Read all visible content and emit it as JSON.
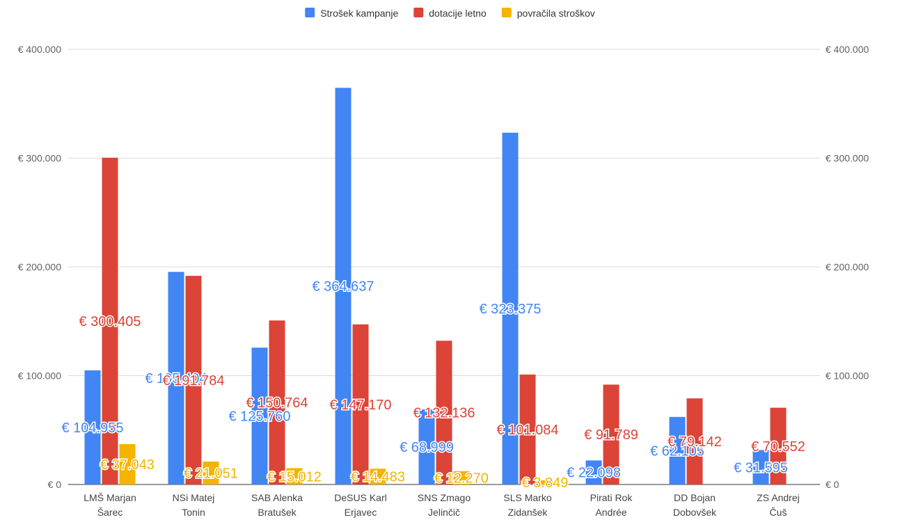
{
  "chart_data": {
    "type": "bar",
    "categories": [
      [
        "LMŠ Marjan",
        "Šarec"
      ],
      [
        "NSi Matej",
        "Tonin"
      ],
      [
        "SAB Alenka",
        "Bratušek"
      ],
      [
        "DeSUS Karl",
        "Erjavec"
      ],
      [
        "SNS Zmago",
        "Jelinčič"
      ],
      [
        "SLS Marko",
        "Zidanšek"
      ],
      [
        "Pirati Rok",
        "Andrée"
      ],
      [
        "DD Bojan",
        "Dobovšek"
      ],
      [
        "ZS Andrej",
        "Čuš"
      ]
    ],
    "series": [
      {
        "name": "Strošek kampanje",
        "color": "#4285F4",
        "values": [
          104955,
          195404,
          125760,
          364637,
          68999,
          323375,
          22098,
          62105,
          31595
        ],
        "labels": [
          "€ 104.955",
          "€ 195.404",
          "€ 125.760",
          "€ 364.637",
          "€ 68.999",
          "€ 323.375",
          "€ 22.098",
          "€ 62.105",
          "€ 31.595"
        ]
      },
      {
        "name": "dotacije letno",
        "color": "#DB4437",
        "values": [
          300405,
          191784,
          150764,
          147170,
          132136,
          101084,
          91789,
          79142,
          70552
        ],
        "labels": [
          "€ 300.405",
          "€ 191.784",
          "€ 150.764",
          "€ 147.170",
          "€ 132.136",
          "€ 101.084",
          "€ 91.789",
          "€ 79.142",
          "€ 70.552"
        ]
      },
      {
        "name": "povračila stroškov",
        "color": "#F4B400",
        "values": [
          37043,
          21051,
          15012,
          14483,
          12270,
          3849,
          null,
          null,
          null
        ],
        "labels": [
          "€ 37.043",
          "€ 21.051",
          "€ 15.012",
          "€ 14.483",
          "€ 12.270",
          "€ 3.849",
          null,
          null,
          null
        ]
      }
    ],
    "ylim": [
      0,
      400000
    ],
    "yticks": [
      0,
      100000,
      200000,
      300000,
      400000
    ],
    "ytick_labels": [
      "€ 0",
      "€ 100.000",
      "€ 200.000",
      "€ 300.000",
      "€ 400.000"
    ],
    "dual_axis": true,
    "legend_position": "top-center",
    "grid": true,
    "title": "",
    "xlabel": "",
    "ylabel": ""
  }
}
